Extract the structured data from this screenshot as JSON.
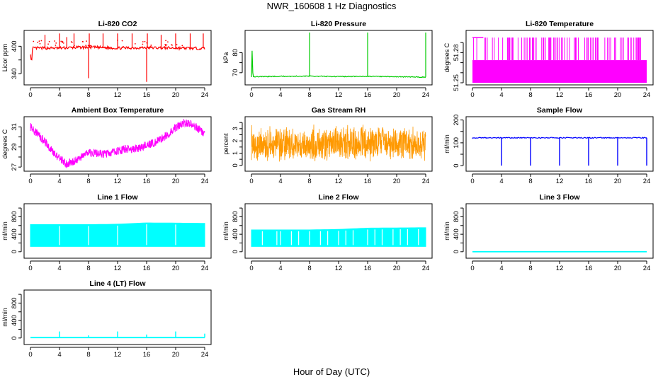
{
  "figure": {
    "title": "NWR_160608  1 Hz Diagnostics",
    "xlabel": "Hour of Day (UTC)"
  },
  "chart_data": [
    {
      "id": "co2",
      "type": "line",
      "title": "Li-820 CO2",
      "xlabel": "",
      "ylabel": "Licor ppm",
      "color": "#ff0000",
      "xlim": [
        0,
        24
      ],
      "ylim": [
        320,
        430
      ],
      "yticks": [
        340,
        400
      ],
      "yticks_minor": [
        370
      ],
      "xticks": [
        0,
        4,
        8,
        12,
        16,
        20,
        24
      ],
      "series": [
        {
          "baseline": 396,
          "points": [
            [
              0,
              385
            ],
            [
              0.15,
              360
            ],
            [
              0.3,
              396
            ],
            [
              4,
              396
            ],
            [
              8,
              398
            ],
            [
              12,
              396
            ],
            [
              16,
              397
            ],
            [
              20,
              396
            ],
            [
              24,
              395
            ],
            [
              24,
              330
            ]
          ],
          "spikes": [
            [
              2,
              425
            ],
            [
              4,
              428
            ],
            [
              5,
              420
            ],
            [
              6,
              428
            ],
            [
              8,
              330
            ],
            [
              8.1,
              428
            ],
            [
              10,
              428
            ],
            [
              12,
              428
            ],
            [
              14,
              428
            ],
            [
              16,
              322
            ],
            [
              16.1,
              428
            ],
            [
              18,
              425
            ],
            [
              20,
              428
            ],
            [
              22,
              428
            ],
            [
              23.8,
              428
            ]
          ]
        }
      ]
    },
    {
      "id": "pressure",
      "type": "line",
      "title": "Li-820 Pressure",
      "xlabel": "",
      "ylabel": "kPa",
      "color": "#00cc00",
      "xlim": [
        0,
        24
      ],
      "ylim": [
        65,
        90
      ],
      "yticks": [
        70,
        80
      ],
      "yticks_minor": [
        75
      ],
      "xticks": [
        0,
        4,
        8,
        12,
        16,
        20,
        24
      ],
      "series": [
        {
          "baseline": 68,
          "points": [
            [
              0,
              68
            ],
            [
              0.1,
              82
            ],
            [
              0.2,
              68
            ],
            [
              4,
              68.2
            ],
            [
              8,
              68.3
            ],
            [
              12,
              68.1
            ],
            [
              16,
              68.2
            ],
            [
              20,
              68
            ],
            [
              24,
              67.8
            ]
          ],
          "spikes": [
            [
              8,
              90
            ],
            [
              16,
              90
            ],
            [
              24,
              90
            ]
          ]
        }
      ]
    },
    {
      "id": "licor_temp",
      "type": "line",
      "title": "Li-820 Temperature",
      "xlabel": "",
      "ylabel": "degrees C",
      "color": "#ff00ff",
      "xlim": [
        0,
        24
      ],
      "ylim": [
        51.25,
        51.3
      ],
      "yticks": [
        51.25,
        51.28
      ],
      "yticks_minor": [
        51.26,
        51.27,
        51.29
      ],
      "xticks": [
        0,
        4,
        8,
        12,
        16,
        20,
        24
      ],
      "series": [
        {
          "levels": [
            51.25,
            51.2725,
            51.295
          ]
        }
      ]
    },
    {
      "id": "box_temp",
      "type": "line",
      "title": "Ambient Box Temperature",
      "xlabel": "",
      "ylabel": "degrees C",
      "color": "#ff00ff",
      "xlim": [
        0,
        24
      ],
      "ylim": [
        26.8,
        31.8
      ],
      "yticks": [
        27,
        29,
        31
      ],
      "yticks_minor": [
        28,
        30
      ],
      "xticks": [
        0,
        4,
        8,
        12,
        16,
        20,
        24
      ],
      "series": [
        {
          "points": [
            [
              0,
              31
            ],
            [
              1,
              30.3
            ],
            [
              2,
              29.5
            ],
            [
              3,
              28.6
            ],
            [
              4,
              27.8
            ],
            [
              5,
              27.3
            ],
            [
              6,
              27.6
            ],
            [
              7,
              28
            ],
            [
              8,
              28.4
            ],
            [
              9,
              28.4
            ],
            [
              10,
              28.3
            ],
            [
              11,
              28.4
            ],
            [
              12,
              28.6
            ],
            [
              13,
              28.8
            ],
            [
              14,
              28.8
            ],
            [
              15,
              28.9
            ],
            [
              16,
              29.2
            ],
            [
              17,
              29.4
            ],
            [
              18,
              29.8
            ],
            [
              19,
              30.3
            ],
            [
              20,
              30.9
            ],
            [
              21,
              31.4
            ],
            [
              22,
              31.3
            ],
            [
              23,
              30.9
            ],
            [
              24,
              30.3
            ]
          ],
          "noise": 0.4
        }
      ]
    },
    {
      "id": "rh",
      "type": "scatter",
      "title": "Gas Stream RH",
      "xlabel": "",
      "ylabel": "percent",
      "color": "#ff9900",
      "xlim": [
        0,
        24
      ],
      "ylim": [
        -0.3,
        3.8
      ],
      "yticks": [
        0,
        1,
        2,
        3
      ],
      "yticks_minor": [
        0.5,
        1.5,
        2.5,
        3.5
      ],
      "xticks": [
        0,
        4,
        8,
        12,
        16,
        20,
        24
      ],
      "series": [
        {
          "mean": 1.8,
          "range": [
            0.1,
            3.5
          ]
        }
      ]
    },
    {
      "id": "sample_flow",
      "type": "line",
      "title": "Sample Flow",
      "xlabel": "",
      "ylabel": "ml/min",
      "color": "#0000ff",
      "xlim": [
        0,
        24
      ],
      "ylim": [
        -15,
        205
      ],
      "yticks": [
        0,
        100,
        200
      ],
      "yticks_minor": [
        50,
        150
      ],
      "xticks": [
        0,
        4,
        8,
        12,
        16,
        20,
        24
      ],
      "series": [
        {
          "baseline": 122,
          "dips": [
            4,
            8,
            12,
            16,
            20,
            24
          ],
          "dip_value": 0
        }
      ]
    },
    {
      "id": "line1",
      "type": "area",
      "title": "Line 1 Flow",
      "xlabel": "",
      "ylabel": "ml/min",
      "color": "#00ffff",
      "xlim": [
        0,
        24
      ],
      "ylim": [
        -100,
        1050
      ],
      "yticks": [
        0,
        400,
        800
      ],
      "yticks_minor": [
        200,
        600,
        1000
      ],
      "xticks": [
        0,
        4,
        8,
        12,
        16,
        20,
        24
      ],
      "series": [
        {
          "low": 120,
          "high": [
            [
              0,
              620
            ],
            [
              8,
              620
            ],
            [
              12,
              630
            ],
            [
              16,
              660
            ],
            [
              24,
              650
            ]
          ],
          "gaps": [
            4,
            8,
            12,
            16,
            20,
            24
          ]
        }
      ]
    },
    {
      "id": "line2",
      "type": "area",
      "title": "Line 2 Flow",
      "xlabel": "",
      "ylabel": "ml/min",
      "color": "#00ffff",
      "xlim": [
        0,
        24
      ],
      "ylim": [
        -100,
        1050
      ],
      "yticks": [
        0,
        400,
        800
      ],
      "yticks_minor": [
        200,
        600,
        1000
      ],
      "xticks": [
        0,
        4,
        8,
        12,
        16,
        20,
        24
      ],
      "series": [
        {
          "low": 120,
          "high": [
            [
              0,
              500
            ],
            [
              8,
              500
            ],
            [
              12,
              510
            ],
            [
              16,
              540
            ],
            [
              24,
              550
            ]
          ],
          "gaps": [
            1.5,
            3.5,
            4,
            5.5,
            6.5,
            8,
            9.5,
            10.5,
            12,
            13,
            14,
            16,
            17,
            18,
            19.5,
            20.5,
            21.5,
            23,
            24
          ]
        }
      ]
    },
    {
      "id": "line3",
      "type": "line",
      "title": "Line 3 Flow",
      "xlabel": "",
      "ylabel": "ml/min",
      "color": "#00ffff",
      "xlim": [
        0,
        24
      ],
      "ylim": [
        -100,
        1050
      ],
      "yticks": [
        0,
        400,
        800
      ],
      "yticks_minor": [
        200,
        600,
        1000
      ],
      "xticks": [
        0,
        4,
        8,
        12,
        16,
        20,
        24
      ],
      "series": [
        {
          "baseline": 0
        }
      ]
    },
    {
      "id": "line4",
      "type": "line",
      "title": "Line 4 (LT) Flow",
      "xlabel": "",
      "ylabel": "ml/min",
      "color": "#00ffff",
      "xlim": [
        0,
        24
      ],
      "ylim": [
        -100,
        1050
      ],
      "yticks": [
        0,
        400,
        800
      ],
      "yticks_minor": [
        200,
        600,
        1000
      ],
      "xticks": [
        0,
        4,
        8,
        12,
        16,
        20,
        24
      ],
      "series": [
        {
          "baseline": 10,
          "spikes": [
            [
              4,
              150
            ],
            [
              8,
              60
            ],
            [
              12,
              150
            ],
            [
              16,
              80
            ],
            [
              20,
              150
            ],
            [
              24,
              100
            ]
          ]
        }
      ]
    }
  ]
}
